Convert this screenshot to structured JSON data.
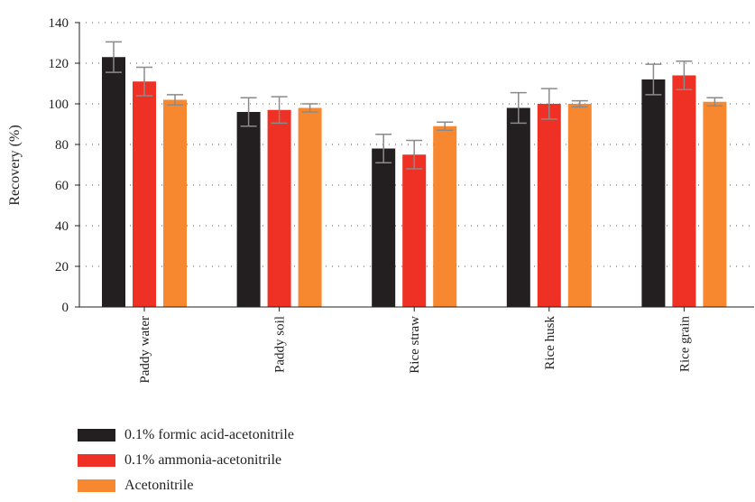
{
  "chart_data": {
    "type": "bar",
    "ylabel": "Recovery (%)",
    "xlabel": "",
    "ylim": [
      0,
      140
    ],
    "yticks": [
      0,
      20,
      40,
      60,
      80,
      100,
      120,
      140
    ],
    "grid": "horizontal dotted",
    "legend_position": "bottom",
    "categories": [
      "Paddy water",
      "Paddy soil",
      "Rice straw",
      "Rice husk",
      "Rice grain"
    ],
    "series": [
      {
        "name": "0.1% formic acid-acetonitrile",
        "color": "#231f20",
        "values": [
          123,
          96,
          78,
          98,
          112
        ],
        "error": [
          7.5,
          7,
          7,
          7.5,
          7.5
        ]
      },
      {
        "name": "0.1% ammonia-acetonitrile",
        "color": "#ee3124",
        "values": [
          111,
          97,
          75,
          100,
          114
        ],
        "error": [
          7,
          6.5,
          7,
          7.5,
          7
        ]
      },
      {
        "name": "Acetonitrile",
        "color": "#f7882f",
        "values": [
          102,
          98,
          89,
          100,
          101
        ],
        "error": [
          2.5,
          2,
          2,
          1.5,
          2
        ]
      }
    ]
  }
}
